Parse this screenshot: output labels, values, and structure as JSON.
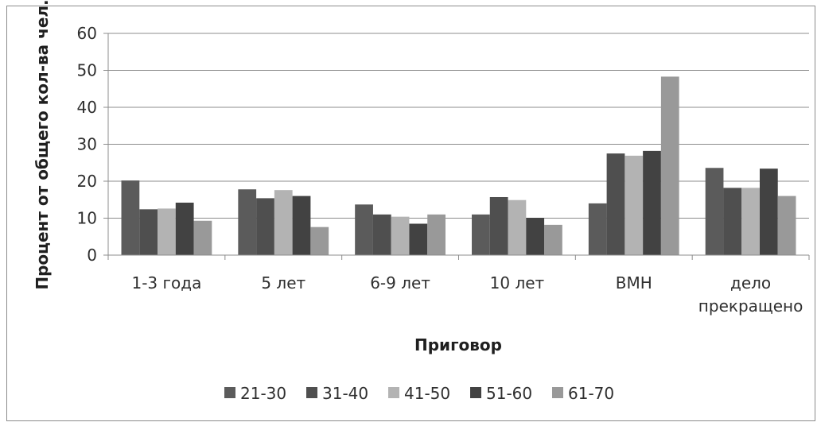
{
  "chart_data": {
    "type": "bar",
    "title": "",
    "xlabel": "Приговор",
    "ylabel": "Процент от общего кол-ва чел.",
    "ylim": [
      0,
      60
    ],
    "yticks": [
      0,
      10,
      20,
      30,
      40,
      50,
      60
    ],
    "grid": true,
    "legend_position": "bottom",
    "categories": [
      [
        "1-3 года"
      ],
      [
        "5 лет"
      ],
      [
        "6-9 лет"
      ],
      [
        "10 лет"
      ],
      [
        "ВМН"
      ],
      [
        "дело",
        "прекращено"
      ]
    ],
    "series": [
      {
        "name": "21-30",
        "color": "#5b5b5b",
        "values": [
          20.2,
          17.8,
          13.7,
          11.0,
          14.0,
          23.6
        ]
      },
      {
        "name": "31-40",
        "color": "#4f4f4f",
        "values": [
          12.4,
          15.4,
          11.0,
          15.7,
          27.5,
          18.2
        ]
      },
      {
        "name": "41-50",
        "color": "#b3b3b3",
        "values": [
          12.6,
          17.6,
          10.4,
          14.9,
          26.9,
          18.2
        ]
      },
      {
        "name": "51-60",
        "color": "#424242",
        "values": [
          14.2,
          16.0,
          8.5,
          10.1,
          28.2,
          23.4
        ]
      },
      {
        "name": "61-70",
        "color": "#999999",
        "values": [
          9.3,
          7.6,
          11.0,
          8.2,
          48.3,
          16.0
        ]
      }
    ]
  }
}
